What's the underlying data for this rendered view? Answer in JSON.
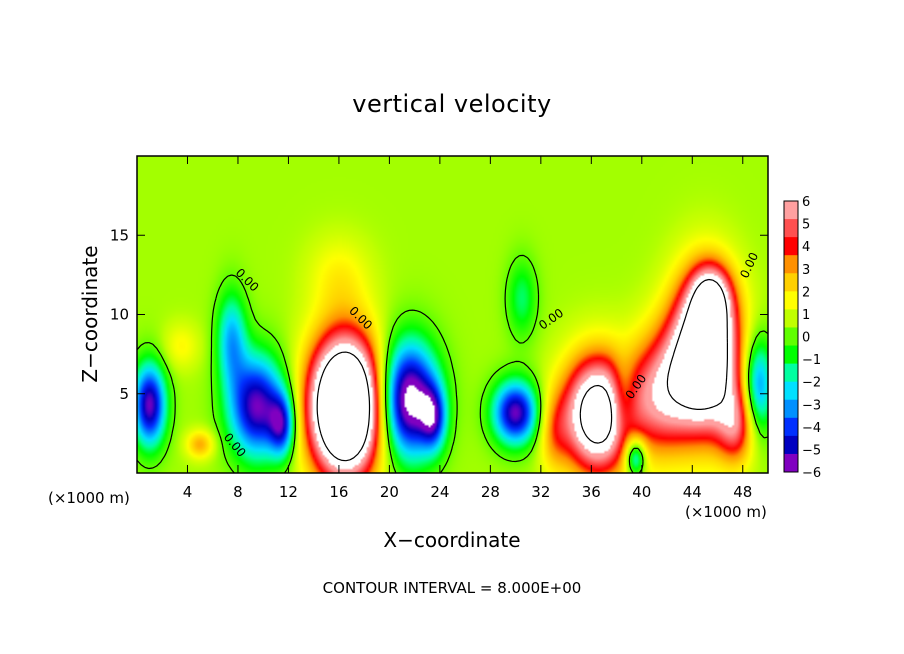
{
  "chart_data": {
    "type": "heatmap",
    "title": "vertical velocity",
    "xlabel": "X−coordinate",
    "ylabel": "Z−coordinate",
    "x_unit_label": "(×1000 m)",
    "x_unit_label_right": "(×1000 m)",
    "xlim": [
      0,
      50
    ],
    "ylim": [
      0,
      20
    ],
    "x_ticks": [
      4,
      8,
      12,
      16,
      20,
      24,
      28,
      32,
      36,
      40,
      44,
      48
    ],
    "y_ticks": [
      5,
      10,
      15
    ],
    "x_tick_labels": [
      "4",
      "8",
      "12",
      "16",
      "20",
      "24",
      "28",
      "32",
      "36",
      "40",
      "44",
      "48"
    ],
    "y_tick_labels": [
      "5",
      "10",
      "15"
    ],
    "contour_interval_text": "CONTOUR INTERVAL = 8.000E+00",
    "contour_label": "0.00",
    "colorbar": {
      "levels": [
        6,
        5,
        4,
        3,
        2,
        1,
        0,
        -1,
        -2,
        -3,
        -4,
        -5,
        -6
      ],
      "labels": [
        "6",
        "5",
        "4",
        "3",
        "2",
        "1",
        "0",
        "−1",
        "−2",
        "−3",
        "−4",
        "−5",
        "−6"
      ],
      "colors": [
        "#ffa0a0",
        "#ff5050",
        "#ff0000",
        "#ff9000",
        "#ffd000",
        "#ffff00",
        "#c0ff00",
        "#60ff00",
        "#00ff00",
        "#00ffa0",
        "#00e0ff",
        "#0090ff",
        "#0030ff",
        "#0000c0",
        "#8000c0"
      ]
    },
    "background_value": 0.6,
    "features": [
      {
        "x": 1.0,
        "z": 4.3,
        "rx": 1.3,
        "rz": 2.6,
        "value": -6.5
      },
      {
        "x": 5.0,
        "z": 1.8,
        "rx": 1.1,
        "rz": 0.9,
        "value": 2.5
      },
      {
        "x": 7.5,
        "z": 8.5,
        "rx": 1.2,
        "rz": 3.0,
        "value": -3.5
      },
      {
        "x": 9.5,
        "z": 4.2,
        "rx": 2.2,
        "rz": 3.2,
        "value": -6.5
      },
      {
        "x": 11.5,
        "z": 3.0,
        "rx": 1.0,
        "rz": 2.0,
        "value": -4.5
      },
      {
        "x": 16.5,
        "z": 4.2,
        "rx": 2.8,
        "rz": 4.3,
        "value": 14.0
      },
      {
        "x": 21.5,
        "z": 4.6,
        "rx": 2.3,
        "rz": 3.6,
        "value": -8.0
      },
      {
        "x": 23.5,
        "z": 3.5,
        "rx": 1.0,
        "rz": 2.0,
        "value": -4.0
      },
      {
        "x": 30.0,
        "z": 3.8,
        "rx": 1.8,
        "rz": 2.0,
        "value": -6.5
      },
      {
        "x": 30.5,
        "z": 11.0,
        "rx": 1.2,
        "rz": 2.5,
        "value": -2.0
      },
      {
        "x": 33.0,
        "z": 2.6,
        "rx": 1.2,
        "rz": 2.5,
        "value": 2.0
      },
      {
        "x": 36.5,
        "z": 3.7,
        "rx": 2.7,
        "rz": 3.6,
        "value": 9.5
      },
      {
        "x": 38.5,
        "z": 4.5,
        "rx": 1.0,
        "rz": 2.5,
        "value": -2.5
      },
      {
        "x": 39.5,
        "z": 1.0,
        "rx": 0.8,
        "rz": 1.2,
        "value": -4.5
      },
      {
        "x": 41.5,
        "z": 5.0,
        "rx": 2.5,
        "rz": 3.8,
        "value": 5.0
      },
      {
        "x": 45.0,
        "z": 7.5,
        "rx": 2.6,
        "rz": 4.6,
        "value": 11.5
      },
      {
        "x": 45.5,
        "z": 11.0,
        "rx": 1.5,
        "rz": 2.0,
        "value": 5.0
      },
      {
        "x": 47.5,
        "z": 3.0,
        "rx": 1.5,
        "rz": 2.5,
        "value": 4.0
      },
      {
        "x": 49.2,
        "z": 5.5,
        "rx": 1.2,
        "rz": 3.0,
        "value": -4.5
      },
      {
        "x": 16.0,
        "z": 12.5,
        "rx": 2.5,
        "rz": 2.5,
        "value": 1.2
      },
      {
        "x": 3.5,
        "z": 8.0,
        "rx": 1.5,
        "rz": 1.5,
        "value": 1.2
      }
    ],
    "contour_label_positions": [
      {
        "x": 8.5,
        "z": 12.0,
        "angle": 45
      },
      {
        "x": 17.5,
        "z": 9.6,
        "angle": 45
      },
      {
        "x": 7.5,
        "z": 1.6,
        "angle": 50
      },
      {
        "x": 33.0,
        "z": 9.5,
        "angle": -35
      },
      {
        "x": 39.8,
        "z": 5.3,
        "angle": -55
      },
      {
        "x": 48.8,
        "z": 13.0,
        "angle": -65
      }
    ]
  }
}
